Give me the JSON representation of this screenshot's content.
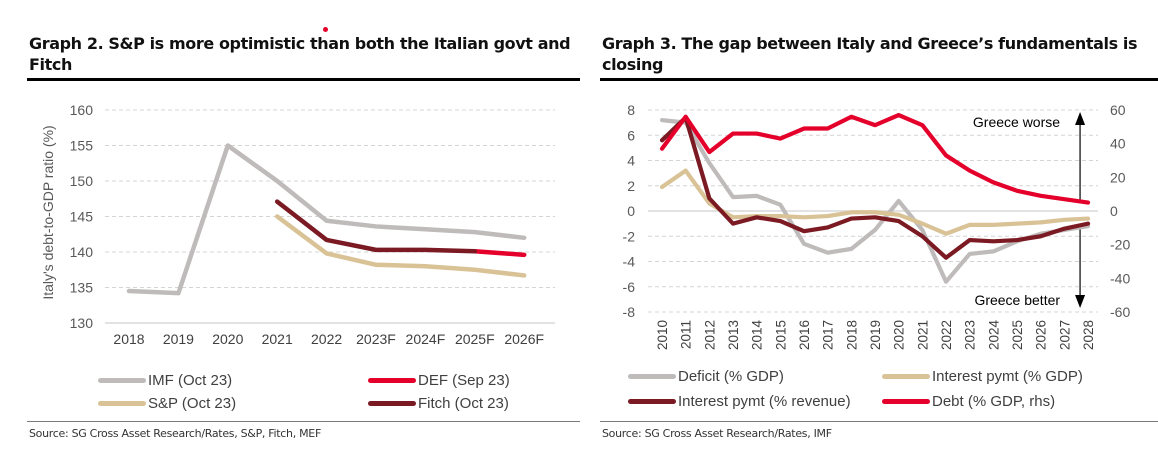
{
  "chart_data": [
    {
      "type": "line",
      "title": "Graph 2. S&P is more optimistic than both the Italian govt and Fitch",
      "xlabel": "",
      "ylabel": "Italy's debt-to-GDP ratio (%)",
      "ylim": [
        130,
        160
      ],
      "yticks": [
        "160",
        "155",
        "150",
        "145",
        "140",
        "135",
        "130"
      ],
      "ytick_values": [
        160,
        155,
        150,
        145,
        140,
        135,
        130
      ],
      "categories": [
        "2018",
        "2019",
        "2020",
        "2021",
        "2022",
        "2023F",
        "2024F",
        "2025F",
        "2026F"
      ],
      "grid": true,
      "legend_position": "bottom",
      "series": [
        {
          "name": "IMF (Oct 23)",
          "color": "#bfbbbb",
          "values": [
            134.5,
            134.2,
            155.0,
            150.0,
            144.4,
            143.6,
            143.2,
            142.8,
            142.0
          ]
        },
        {
          "name": "DEF (Sep 23)",
          "color": "#e4002b",
          "values": [
            null,
            null,
            null,
            null,
            null,
            null,
            null,
            140.1,
            139.6
          ]
        },
        {
          "name": "S&P (Oct 23)",
          "color": "#d9c396",
          "values": [
            null,
            null,
            null,
            145.0,
            139.8,
            138.2,
            138.0,
            137.5,
            136.7
          ]
        },
        {
          "name": "Fitch (Oct 23)",
          "color": "#7b1a22",
          "values": [
            null,
            null,
            null,
            147.1,
            141.7,
            140.3,
            140.3,
            140.1,
            null
          ]
        }
      ],
      "source": "Source: SG Cross Asset Research/Rates, S&P, Fitch, MEF"
    },
    {
      "type": "line",
      "title": "Graph 3. The gap between Italy and Greece’s fundamentals is closing",
      "xlabel": "",
      "ylabel": "",
      "ylim": [
        -8,
        8
      ],
      "y2lim": [
        -60,
        60
      ],
      "yticks": [
        "8",
        "6",
        "4",
        "2",
        "0",
        "-2",
        "-4",
        "-6",
        "-8"
      ],
      "ytick_values": [
        8,
        6,
        4,
        2,
        0,
        -2,
        -4,
        -6,
        -8
      ],
      "y2ticks": [
        "60",
        "40",
        "20",
        "0",
        "-20",
        "-40",
        "-60"
      ],
      "y2tick_values": [
        60,
        40,
        20,
        0,
        -20,
        -40,
        -60
      ],
      "categories": [
        "2010",
        "2011",
        "2012",
        "2013",
        "2014",
        "2015",
        "2016",
        "2017",
        "2018",
        "2019",
        "2020",
        "2021",
        "2022",
        "2023",
        "2024",
        "2025",
        "2026",
        "2027",
        "2028"
      ],
      "grid": true,
      "legend_position": "bottom",
      "annotations": [
        {
          "text": "Greece worse",
          "arrow": "up"
        },
        {
          "text": "Greece better",
          "arrow": "down"
        }
      ],
      "series": [
        {
          "name": "Deficit (% GDP)",
          "axis": "left",
          "color": "#bfbbbb",
          "values": [
            7.2,
            7.0,
            3.8,
            1.1,
            1.2,
            0.5,
            -2.6,
            -3.3,
            -3.0,
            -1.5,
            0.8,
            -1.5,
            -5.6,
            -3.4,
            -3.2,
            -2.4,
            -1.8,
            -1.5,
            -1.2
          ]
        },
        {
          "name": "Interest pymt (% GDP)",
          "axis": "left",
          "color": "#d9c396",
          "values": [
            1.9,
            3.2,
            0.6,
            -0.5,
            -0.4,
            -0.4,
            -0.5,
            -0.4,
            -0.1,
            -0.1,
            -0.3,
            -1.0,
            -1.8,
            -1.1,
            -1.1,
            -1.0,
            -0.9,
            -0.7,
            -0.6
          ]
        },
        {
          "name": "Interest pymt (% revenue)",
          "axis": "left",
          "color": "#7b1a22",
          "values": [
            5.6,
            7.4,
            1.0,
            -1.0,
            -0.5,
            -0.8,
            -1.6,
            -1.3,
            -0.6,
            -0.5,
            -0.8,
            -2.0,
            -3.7,
            -2.3,
            -2.4,
            -2.3,
            -2.0,
            -1.4,
            -1.0
          ]
        },
        {
          "name": "Debt (% GDP, rhs)",
          "axis": "right",
          "color": "#e4002b",
          "values": [
            37,
            56,
            35,
            46,
            46,
            43,
            49,
            49,
            56,
            51,
            57,
            51,
            33,
            24,
            17,
            12,
            9,
            7,
            5
          ]
        }
      ],
      "source": "Source: SG Cross Asset Research/Rates, IMF"
    }
  ]
}
